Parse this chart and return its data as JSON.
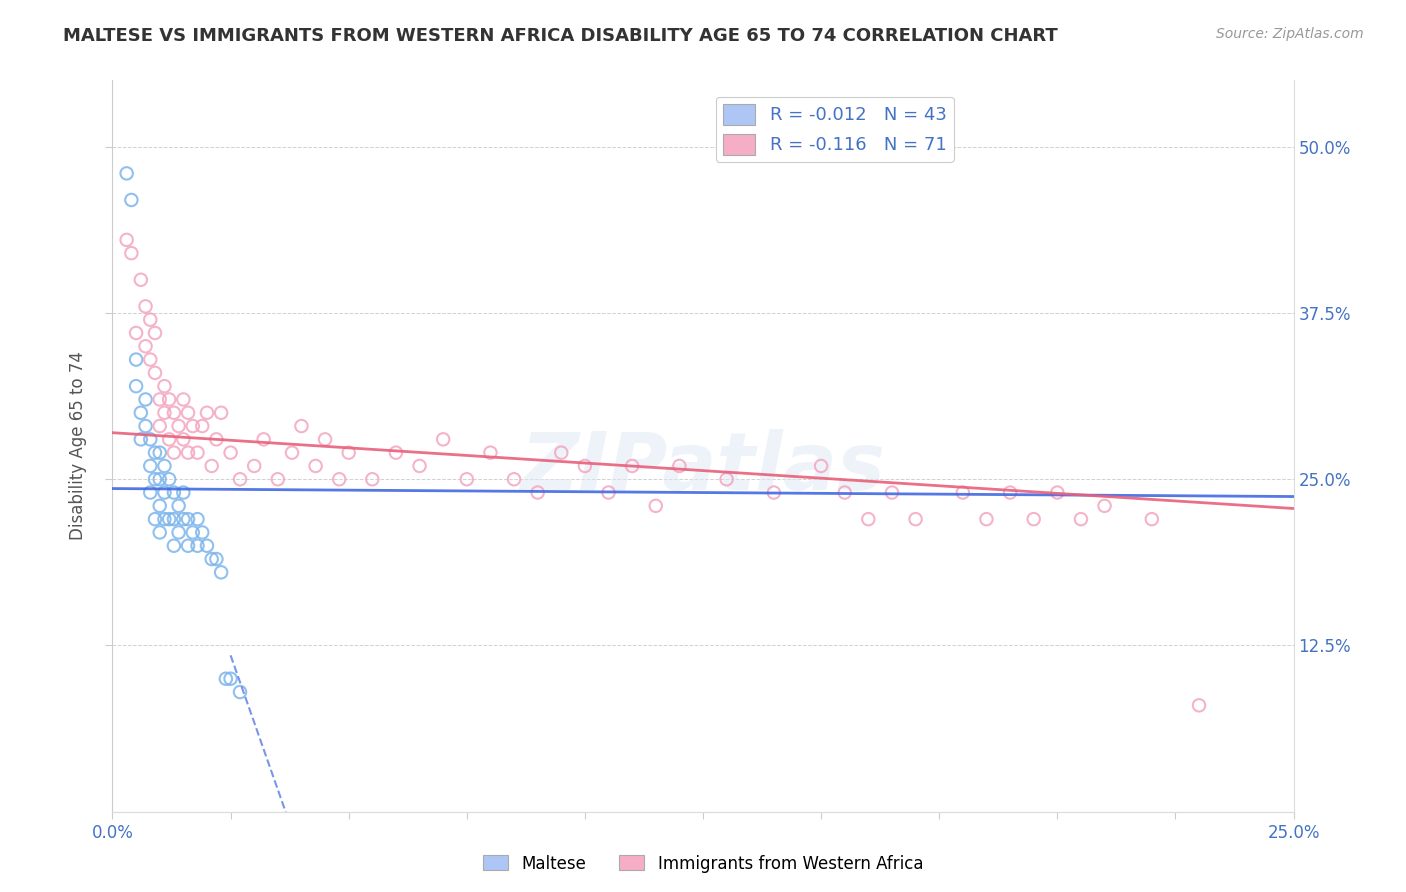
{
  "title": "MALTESE VS IMMIGRANTS FROM WESTERN AFRICA DISABILITY AGE 65 TO 74 CORRELATION CHART",
  "source": "Source: ZipAtlas.com",
  "ylabel": "Disability Age 65 to 74",
  "y_tick_labels": [
    "12.5%",
    "25.0%",
    "37.5%",
    "50.0%"
  ],
  "y_tick_values": [
    0.125,
    0.25,
    0.375,
    0.5
  ],
  "x_min": 0.0,
  "x_max": 0.25,
  "y_min": 0.0,
  "y_max": 0.55,
  "legend_r_labels": [
    "R = -0.012   N = 43",
    "R = -0.116   N = 71"
  ],
  "legend_labels": [
    "Maltese",
    "Immigrants from Western Africa"
  ],
  "maltese_color": "#7cb5ec",
  "immigrants_color": "#f4a6c0",
  "maltese_line_color": "#4169e1",
  "immigrants_line_color": "#e8607a",
  "background_color": "#ffffff",
  "watermark": "ZIPatlas",
  "maltese_x": [
    0.003,
    0.004,
    0.005,
    0.005,
    0.006,
    0.006,
    0.007,
    0.007,
    0.008,
    0.008,
    0.008,
    0.009,
    0.009,
    0.009,
    0.01,
    0.01,
    0.01,
    0.01,
    0.011,
    0.011,
    0.011,
    0.012,
    0.012,
    0.013,
    0.013,
    0.013,
    0.014,
    0.014,
    0.015,
    0.015,
    0.016,
    0.016,
    0.017,
    0.018,
    0.018,
    0.019,
    0.02,
    0.021,
    0.022,
    0.023,
    0.024,
    0.025,
    0.027
  ],
  "maltese_y": [
    0.48,
    0.46,
    0.34,
    0.32,
    0.3,
    0.28,
    0.29,
    0.31,
    0.28,
    0.26,
    0.24,
    0.27,
    0.25,
    0.22,
    0.27,
    0.25,
    0.23,
    0.21,
    0.26,
    0.24,
    0.22,
    0.25,
    0.22,
    0.24,
    0.22,
    0.2,
    0.23,
    0.21,
    0.24,
    0.22,
    0.22,
    0.2,
    0.21,
    0.22,
    0.2,
    0.21,
    0.2,
    0.19,
    0.19,
    0.18,
    0.1,
    0.1,
    0.09
  ],
  "immigrants_x": [
    0.003,
    0.004,
    0.005,
    0.006,
    0.007,
    0.007,
    0.008,
    0.008,
    0.009,
    0.009,
    0.01,
    0.01,
    0.011,
    0.011,
    0.012,
    0.012,
    0.013,
    0.013,
    0.014,
    0.015,
    0.015,
    0.016,
    0.016,
    0.017,
    0.018,
    0.019,
    0.02,
    0.021,
    0.022,
    0.023,
    0.025,
    0.027,
    0.03,
    0.032,
    0.035,
    0.038,
    0.04,
    0.043,
    0.045,
    0.048,
    0.05,
    0.055,
    0.06,
    0.065,
    0.07,
    0.075,
    0.08,
    0.085,
    0.09,
    0.095,
    0.1,
    0.105,
    0.11,
    0.115,
    0.12,
    0.13,
    0.14,
    0.15,
    0.155,
    0.16,
    0.165,
    0.17,
    0.18,
    0.185,
    0.19,
    0.195,
    0.2,
    0.205,
    0.21,
    0.22,
    0.23
  ],
  "immigrants_y": [
    0.43,
    0.42,
    0.36,
    0.4,
    0.38,
    0.35,
    0.37,
    0.34,
    0.36,
    0.33,
    0.31,
    0.29,
    0.32,
    0.3,
    0.31,
    0.28,
    0.3,
    0.27,
    0.29,
    0.31,
    0.28,
    0.3,
    0.27,
    0.29,
    0.27,
    0.29,
    0.3,
    0.26,
    0.28,
    0.3,
    0.27,
    0.25,
    0.26,
    0.28,
    0.25,
    0.27,
    0.29,
    0.26,
    0.28,
    0.25,
    0.27,
    0.25,
    0.27,
    0.26,
    0.28,
    0.25,
    0.27,
    0.25,
    0.24,
    0.27,
    0.26,
    0.24,
    0.26,
    0.23,
    0.26,
    0.25,
    0.24,
    0.26,
    0.24,
    0.22,
    0.24,
    0.22,
    0.24,
    0.22,
    0.24,
    0.22,
    0.24,
    0.22,
    0.23,
    0.22,
    0.08
  ],
  "maltese_trend": [
    0.243,
    0.237
  ],
  "immigrants_trend": [
    0.285,
    0.228
  ]
}
